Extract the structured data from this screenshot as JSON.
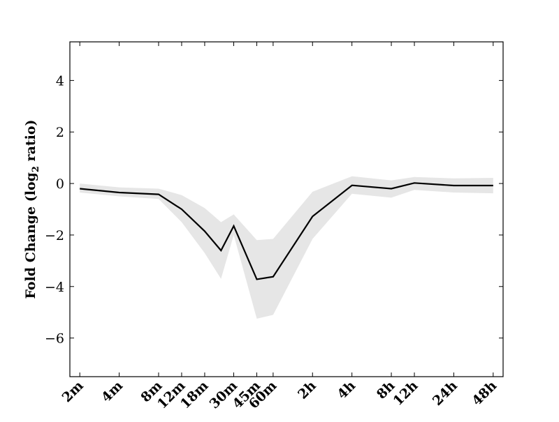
{
  "chart_data": {
    "type": "line",
    "title": "",
    "xlabel": "",
    "ylabel": "Fold Change (log",
    "ylabel_subscript": "2",
    "ylabel_suffix": " ratio)",
    "categories": [
      "2m",
      "4m",
      "8m",
      "12m",
      "18m",
      "30m",
      "45m",
      "60m",
      "2h",
      "4h",
      "8h",
      "12h",
      "24h",
      "48h"
    ],
    "x": [
      2,
      4,
      8,
      12,
      18,
      24,
      30,
      45,
      60,
      120,
      240,
      480,
      720,
      1440,
      2880
    ],
    "series": [
      {
        "values": [
          -0.2,
          -0.35,
          -0.42,
          -1.0,
          -1.85,
          -2.6,
          -1.65,
          -3.72,
          -3.62,
          -1.28,
          -0.07,
          -0.2,
          0.02,
          -0.08,
          -0.08
        ],
        "band_upper": [
          0.0,
          -0.15,
          -0.2,
          -0.45,
          -0.95,
          -1.5,
          -1.2,
          -2.2,
          -2.15,
          -0.32,
          0.28,
          0.12,
          0.25,
          0.2,
          0.22
        ],
        "band_lower": [
          -0.35,
          -0.5,
          -0.6,
          -1.5,
          -2.7,
          -3.7,
          -2.0,
          -5.25,
          -5.1,
          -2.15,
          -0.4,
          -0.55,
          -0.25,
          -0.35,
          -0.38
        ]
      }
    ],
    "ylim": [
      -7.5,
      5.5
    ],
    "yticks": [
      4,
      2,
      0,
      -2,
      -4,
      -6
    ],
    "ytick_labels": [
      "4",
      "2",
      "0",
      "−2",
      "−4",
      "−6"
    ],
    "xscale": "log",
    "grid": false,
    "colors": {
      "line": "#000000",
      "band": "#e6e6e6",
      "axes": "#000000"
    }
  }
}
